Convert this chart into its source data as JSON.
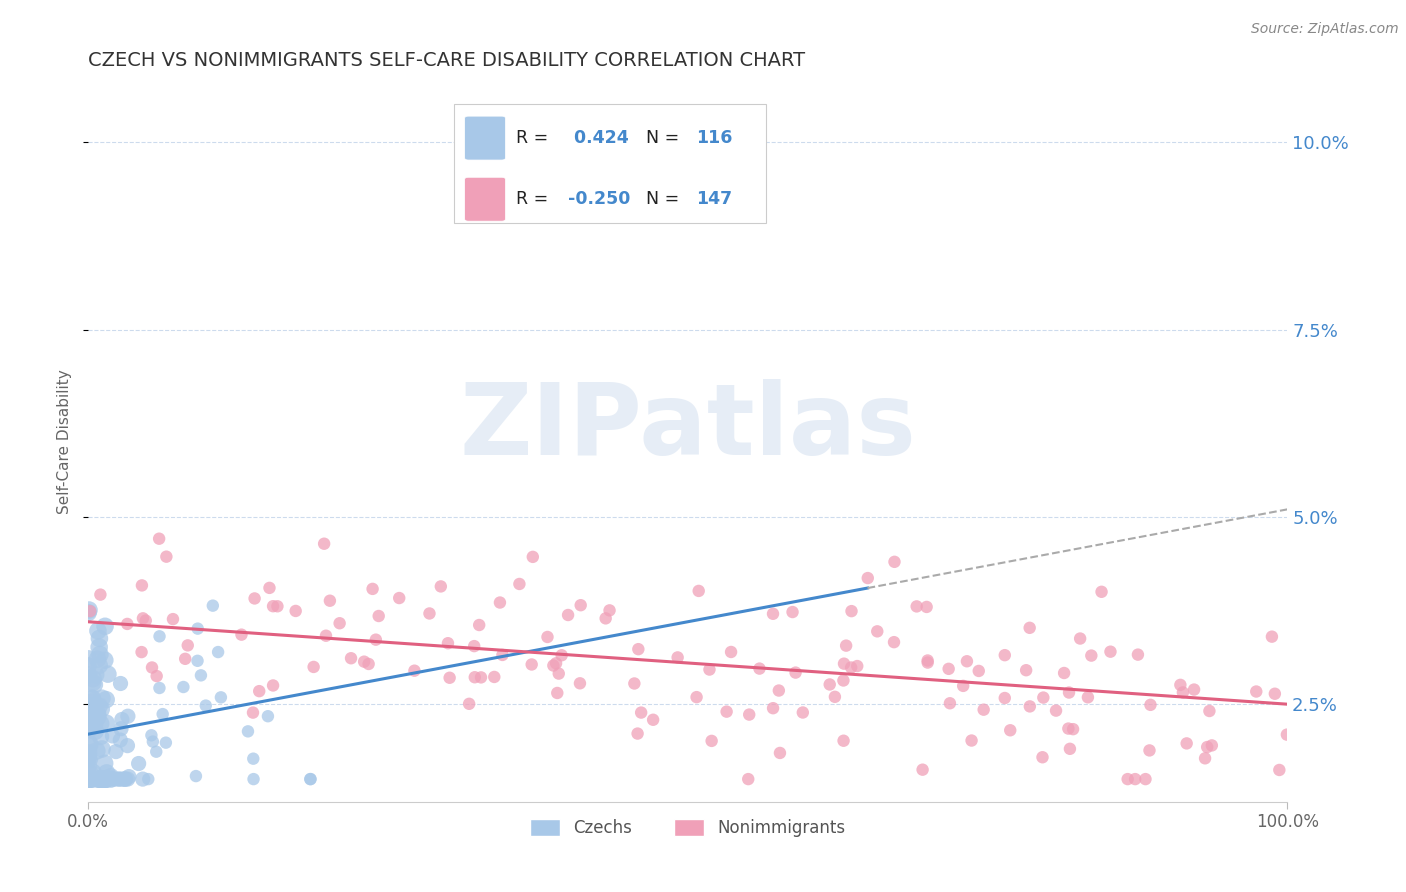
{
  "title": "CZECH VS NONIMMIGRANTS SELF-CARE DISABILITY CORRELATION CHART",
  "source": "Source: ZipAtlas.com",
  "ylabel": "Self-Care Disability",
  "y_ticks": [
    0.025,
    0.05,
    0.075,
    0.1
  ],
  "y_tick_labels": [
    "2.5%",
    "5.0%",
    "7.5%",
    "10.0%"
  ],
  "xlim": [
    0.0,
    1.0
  ],
  "ylim": [
    0.012,
    0.108
  ],
  "czech_R": 0.424,
  "czech_N": 116,
  "nonimm_R": -0.25,
  "nonimm_N": 147,
  "czech_color": "#a8c8e8",
  "nonimm_color": "#f0a0b8",
  "czech_line_color": "#4488cc",
  "nonimm_line_color": "#e06080",
  "czech_line_solid_end": 0.65,
  "czech_intercept": 0.021,
  "czech_slope": 0.03,
  "nonimm_intercept": 0.036,
  "nonimm_slope": -0.011,
  "legend_label_czech": "Czechs",
  "legend_label_nonimm": "Nonimmigrants",
  "background_color": "#ffffff",
  "grid_color": "#c8d8ec",
  "watermark_text": "ZIPatlas",
  "title_color": "#333333",
  "axis_label_color": "#4488cc",
  "right_yaxis_color": "#4488cc",
  "source_color": "#888888"
}
